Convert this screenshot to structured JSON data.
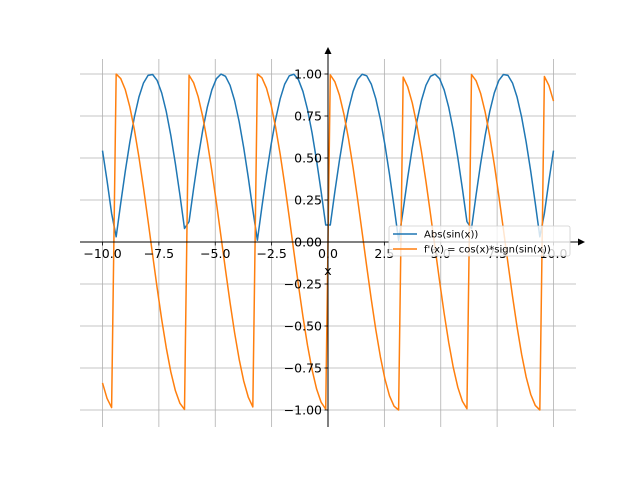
{
  "chart_data": {
    "type": "line",
    "title": "",
    "xlabel": "x",
    "ylabel": "",
    "xlim": [
      -10,
      10
    ],
    "ylim": [
      -1,
      1
    ],
    "x_range": [
      -10,
      10
    ],
    "samples": 100,
    "grid": true,
    "spines": "centered at origin with arrowheads",
    "legend_placement": "right, just above the x-axis",
    "x_ticks": [
      -10,
      -7.5,
      -5,
      -2.5,
      0,
      2.5,
      5,
      7.5,
      10
    ],
    "x_tick_labels": [
      "−10.0",
      "−7.5",
      "−5.0",
      "−2.5",
      "0.0",
      "2.5",
      "5.0",
      "7.5",
      "10.0"
    ],
    "y_ticks": [
      -1,
      -0.75,
      -0.5,
      -0.25,
      0,
      0.25,
      0.5,
      0.75,
      1
    ],
    "y_tick_labels": [
      "−1.00",
      "−0.75",
      "−0.50",
      "−0.25",
      "0.00",
      "0.25",
      "0.50",
      "0.75",
      "1.00"
    ],
    "series": [
      {
        "name": "Abs(sin(x))",
        "function": "abs(sin(x))",
        "color": "#1f77b4"
      },
      {
        "name": "f'(x) = cos(x)*sign(sin(x))",
        "function": "cos(x)*sign(sin(x))",
        "color": "#ff7f0e"
      }
    ]
  }
}
